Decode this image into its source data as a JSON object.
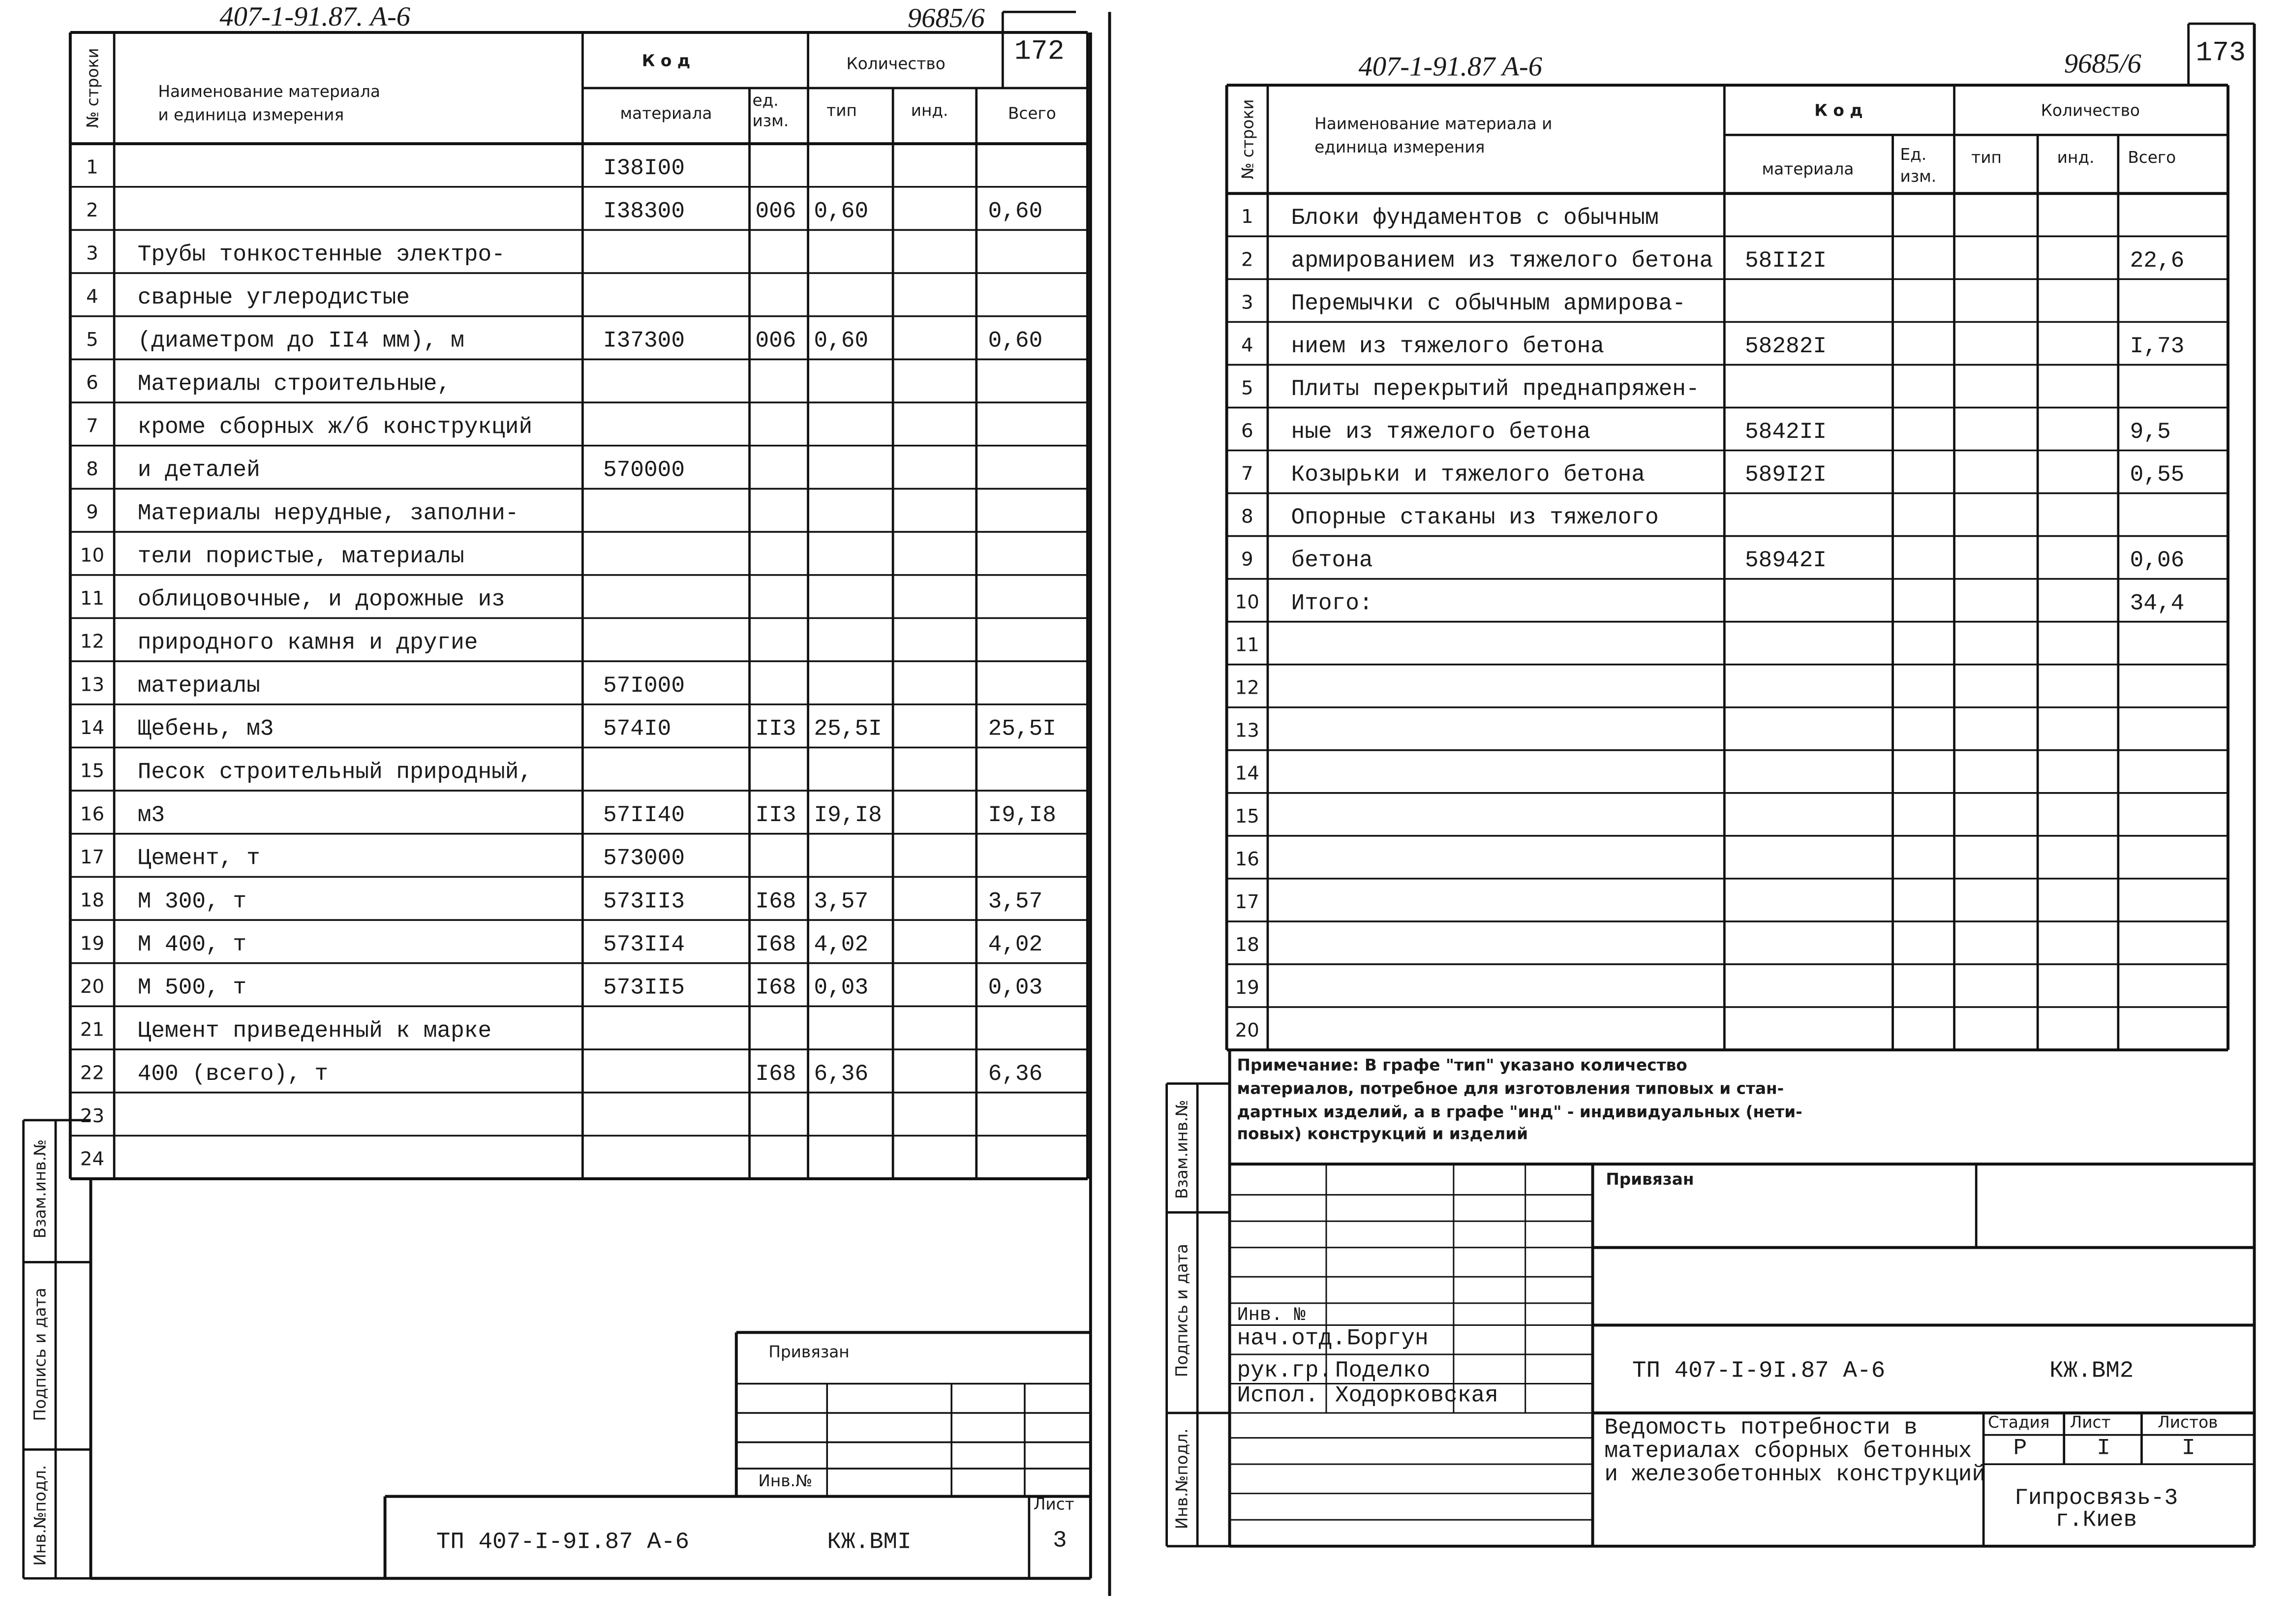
{
  "left_sheet": {
    "header": {
      "project_code": "407-1-91.87. А-6",
      "archive_no": "9685/6",
      "page_no": "172"
    },
    "columns": {
      "row_no": "№ строки",
      "name": [
        "Наименование материала",
        "и единица измерения"
      ],
      "code": "К о д",
      "material": "материала",
      "unit": [
        "ед.",
        "изм."
      ],
      "quantity": "Количество",
      "type": "тип",
      "ind": "инд.",
      "total": "Всего"
    },
    "rows": [
      {
        "no": 1,
        "material": "I38I00"
      },
      {
        "no": 2,
        "material": "I38300",
        "unit": "006",
        "type": "0,60",
        "total": "0,60"
      },
      {
        "no": 3,
        "name": "Трубы тонкостенные электро-"
      },
      {
        "no": 4,
        "name": "сварные углеродистые"
      },
      {
        "no": 5,
        "name": "(диаметром до II4 мм), м",
        "material": "I37300",
        "unit": "006",
        "type": "0,60",
        "total": "0,60"
      },
      {
        "no": 6,
        "name": "Материалы строительные,"
      },
      {
        "no": 7,
        "name": "кроме сборных ж/б конструкций"
      },
      {
        "no": 8,
        "name": "и деталей",
        "material": "570000"
      },
      {
        "no": 9,
        "name": "Материалы нерудные, заполни-"
      },
      {
        "no": 10,
        "name": "тели пористые, материалы"
      },
      {
        "no": 11,
        "name": "облицовочные, и дорожные из"
      },
      {
        "no": 12,
        "name": "природного камня и другие"
      },
      {
        "no": 13,
        "name": "материалы",
        "material": "57I000"
      },
      {
        "no": 14,
        "name": "Щебень, м3",
        "material": "574I0",
        "unit": "II3",
        "type": "25,5I",
        "total": "25,5I"
      },
      {
        "no": 15,
        "name": "Песок строительный природный,"
      },
      {
        "no": 16,
        "name": "м3",
        "material": "57II40",
        "unit": "II3",
        "type": "I9,I8",
        "total": "I9,I8"
      },
      {
        "no": 17,
        "name": "Цемент, т",
        "material": "573000"
      },
      {
        "no": 18,
        "name": "М 300, т",
        "material": "573II3",
        "unit": "I68",
        "type": "3,57",
        "total": "3,57"
      },
      {
        "no": 19,
        "name": "М 400, т",
        "material": "573II4",
        "unit": "I68",
        "type": "4,02",
        "total": "4,02"
      },
      {
        "no": 20,
        "name": "М 500, т",
        "material": "573II5",
        "unit": "I68",
        "type": "0,03",
        "total": "0,03"
      },
      {
        "no": 21,
        "name": "Цемент приведенный к марке"
      },
      {
        "no": 22,
        "name": "400 (всего), т",
        "unit": "I68",
        "type": "6,36",
        "total": "6,36"
      },
      {
        "no": 23
      },
      {
        "no": 24
      }
    ],
    "side_labels": [
      "Взам.инв.№",
      "Подпись и дата",
      "Инв.№подл."
    ],
    "stamp": {
      "attached": "Привязан",
      "inv_no": "Инв.№",
      "sheet_label": "Лист",
      "sheet_no": "3",
      "designation": "ТП 407-I-9I.87 А-6",
      "mark": "КЖ.ВМI"
    }
  },
  "right_sheet": {
    "header": {
      "project_code": "407-1-91.87 А-6",
      "archive_no": "9685/6",
      "page_no": "173"
    },
    "columns": {
      "row_no": "№ строки",
      "name": [
        "Наименование материала и",
        "единица измерения"
      ],
      "code": "К о д",
      "material": "материала",
      "unit": [
        "Ед.",
        "изм."
      ],
      "quantity": "Количество",
      "type": "тип",
      "ind": "инд.",
      "total": "Всего"
    },
    "rows": [
      {
        "no": 1,
        "name": "Блоки фундаментов с обычным"
      },
      {
        "no": 2,
        "name": "армированием из тяжелого бетона",
        "material": "58II2I",
        "total": "22,6"
      },
      {
        "no": 3,
        "name": "Перемычки с обычным армирова-"
      },
      {
        "no": 4,
        "name": "нием из тяжелого бетона",
        "material": "58282I",
        "total": "I,73"
      },
      {
        "no": 5,
        "name": "Плиты перекрытий преднапряжен-"
      },
      {
        "no": 6,
        "name": "ные из тяжелого бетона",
        "material": "5842II",
        "total": "9,5"
      },
      {
        "no": 7,
        "name": "Козырьки и тяжелого бетона",
        "material": "589I2I",
        "total": "0,55"
      },
      {
        "no": 8,
        "name": "Опорные стаканы из тяжелого"
      },
      {
        "no": 9,
        "name": "бетона",
        "material": "58942I",
        "total": "0,06"
      },
      {
        "no": 10,
        "name": "Итого:",
        "total": "34,4"
      },
      {
        "no": 11
      },
      {
        "no": 12
      },
      {
        "no": 13
      },
      {
        "no": 14
      },
      {
        "no": 15
      },
      {
        "no": 16
      },
      {
        "no": 17
      },
      {
        "no": 18
      },
      {
        "no": 19
      },
      {
        "no": 20
      }
    ],
    "note": [
      "Примечание: В графе \"тип\" указано количество",
      "материалов, потребное для изготовления типовых и стан-",
      "дартных изделий, а в графе \"инд\" - индивидуальных (нети-",
      "повых) конструкций и изделий"
    ],
    "side_labels": [
      "Взам.инв.№",
      "Подпись и дата",
      "Инв.№подл."
    ],
    "stamp": {
      "attached": "Привязан",
      "inv_no": "Инв. №",
      "signatures": [
        {
          "role": "нач.отд.",
          "name": "Боргун"
        },
        {
          "role": "рук.гр.",
          "name": "Поделко"
        },
        {
          "role": "Испол.",
          "name": "Ходорковская"
        }
      ],
      "designation": "ТП 407-I-9I.87 А-6",
      "mark": "КЖ.ВМ2",
      "title": [
        "Ведомость потребности в",
        "материалах сборных бетонных",
        "и железобетонных конструкций"
      ],
      "stage_label": "Стадия",
      "sheet_label": "Лист",
      "sheets_label": "Листов",
      "stage": "Р",
      "sheet": "I",
      "sheets": "I",
      "organization": [
        "Гипросвязь-3",
        "г.Киев"
      ]
    }
  }
}
